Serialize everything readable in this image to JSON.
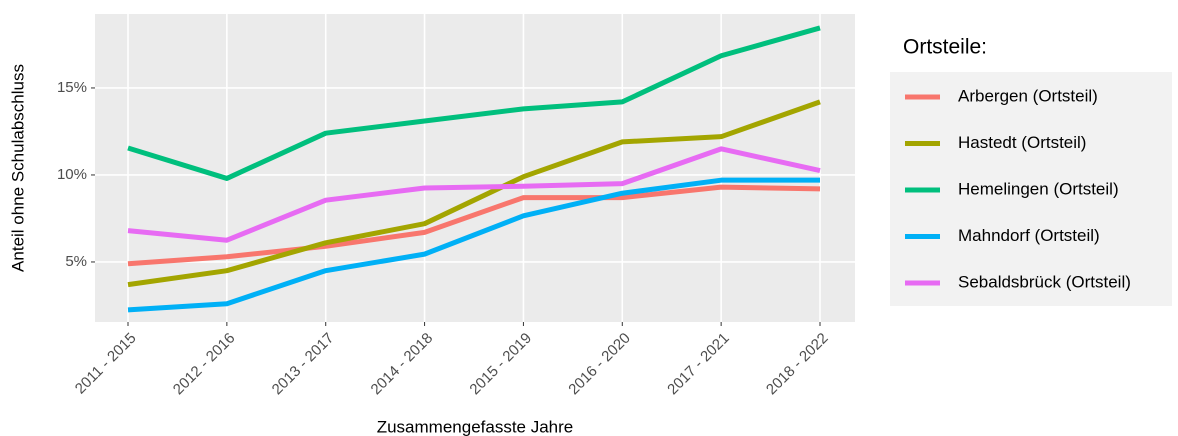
{
  "chart_data": {
    "type": "line",
    "xlabel": "Zusammengefasste Jahre",
    "ylabel": "Anteil ohne Schulabschluss",
    "categories": [
      "2011 - 2015",
      "2012 - 2016",
      "2013 - 2017",
      "2014 - 2018",
      "2015 - 2019",
      "2016 - 2020",
      "2017 - 2021",
      "2018 - 2022"
    ],
    "ylim": [
      1.55,
      19.25
    ],
    "yticks": [
      {
        "value": 5,
        "label": "5%"
      },
      {
        "value": 10,
        "label": "10%"
      },
      {
        "value": 15,
        "label": "15%"
      }
    ],
    "grid": true,
    "legend_title": "Ortsteile:",
    "legend": "right",
    "series": [
      {
        "name": "Arbergen (Ortsteil)",
        "color": "#F8766D",
        "values": [
          4.9,
          5.3,
          5.9,
          6.7,
          8.7,
          8.7,
          9.3,
          9.2
        ]
      },
      {
        "name": "Hastedt (Ortsteil)",
        "color": "#A3A500",
        "values": [
          3.7,
          4.5,
          6.1,
          7.2,
          9.9,
          11.9,
          12.2,
          14.2
        ]
      },
      {
        "name": "Hemelingen (Ortsteil)",
        "color": "#00BF7D",
        "values": [
          11.55,
          9.8,
          12.4,
          13.1,
          13.8,
          14.2,
          16.85,
          18.45
        ]
      },
      {
        "name": "Mahndorf (Ortsteil)",
        "color": "#00B0F6",
        "values": [
          2.25,
          2.6,
          4.5,
          5.45,
          7.65,
          8.95,
          9.7,
          9.7
        ]
      },
      {
        "name": "Sebaldsbrück (Ortsteil)",
        "color": "#E76BF3",
        "values": [
          6.8,
          6.25,
          8.55,
          9.25,
          9.35,
          9.5,
          11.5,
          10.25
        ]
      }
    ]
  }
}
